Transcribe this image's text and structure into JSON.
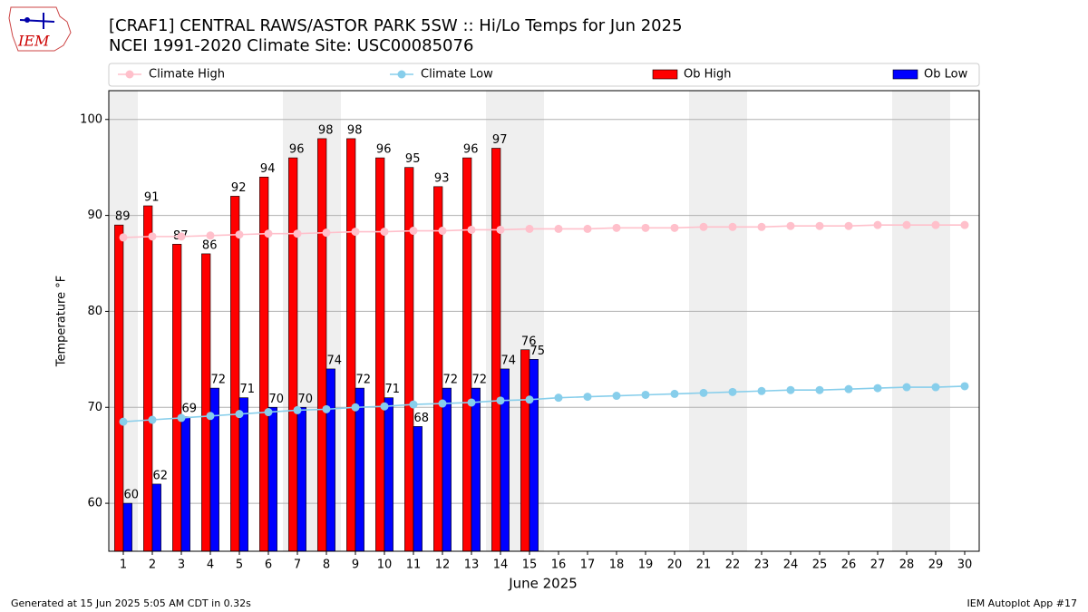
{
  "chart_data": {
    "type": "bar",
    "title": "[CRAF1] CENTRAL RAWS/ASTOR PARK 5SW :: Hi/Lo Temps for Jun 2025",
    "subtitle": "NCEI 1991-2020 Climate Site: USC00085076",
    "logo_text": "IEM",
    "x_label": "June 2025",
    "y_label": "Temperature °F",
    "footer_left": "Generated at 15 Jun 2025 5:05 AM CDT in 0.32s",
    "footer_right": "IEM Autoplot App #17",
    "x": [
      1,
      2,
      3,
      4,
      5,
      6,
      7,
      8,
      9,
      10,
      11,
      12,
      13,
      14,
      15,
      16,
      17,
      18,
      19,
      20,
      21,
      22,
      23,
      24,
      25,
      26,
      27,
      28,
      29,
      30
    ],
    "xlim": [
      0.5,
      30.5
    ],
    "xticks": [
      1,
      2,
      3,
      4,
      5,
      6,
      7,
      8,
      9,
      10,
      11,
      12,
      13,
      14,
      15,
      16,
      17,
      18,
      19,
      20,
      21,
      22,
      23,
      24,
      25,
      26,
      27,
      28,
      29,
      30
    ],
    "ylim": [
      55,
      103
    ],
    "yticks": [
      60,
      70,
      80,
      90,
      100
    ],
    "grid": true,
    "shaded_ranges": [
      [
        0.5,
        1.5
      ],
      [
        6.5,
        8.5
      ],
      [
        13.5,
        15.5
      ],
      [
        20.5,
        22.5
      ],
      [
        27.5,
        29.5
      ]
    ],
    "shade_color": "#efefef",
    "series": [
      {
        "name": "Climate High",
        "type": "line",
        "color": "#ffc0cb",
        "values": [
          87.7,
          87.8,
          87.8,
          87.9,
          88.0,
          88.1,
          88.1,
          88.2,
          88.3,
          88.3,
          88.4,
          88.4,
          88.5,
          88.5,
          88.6,
          88.6,
          88.6,
          88.7,
          88.7,
          88.7,
          88.8,
          88.8,
          88.8,
          88.9,
          88.9,
          88.9,
          89.0,
          89.0,
          89.0,
          89.0
        ]
      },
      {
        "name": "Climate Low",
        "type": "line",
        "color": "#87ceeb",
        "values": [
          68.5,
          68.7,
          68.9,
          69.1,
          69.3,
          69.5,
          69.7,
          69.8,
          70.0,
          70.1,
          70.3,
          70.4,
          70.5,
          70.7,
          70.8,
          71.0,
          71.1,
          71.2,
          71.3,
          71.4,
          71.5,
          71.6,
          71.7,
          71.8,
          71.8,
          71.9,
          72.0,
          72.1,
          72.1,
          72.2
        ]
      },
      {
        "name": "Ob High",
        "type": "bar",
        "color": "#ff0000",
        "values": [
          89,
          91,
          87,
          86,
          92,
          94,
          96,
          98,
          98,
          96,
          95,
          93,
          96,
          97,
          76,
          null,
          null,
          null,
          null,
          null,
          null,
          null,
          null,
          null,
          null,
          null,
          null,
          null,
          null,
          null
        ]
      },
      {
        "name": "Ob Low",
        "type": "bar",
        "color": "#0000ff",
        "values": [
          60,
          62,
          69,
          72,
          71,
          70,
          70,
          74,
          72,
          71,
          68,
          72,
          72,
          74,
          75,
          null,
          null,
          null,
          null,
          null,
          null,
          null,
          null,
          null,
          null,
          null,
          null,
          null,
          null,
          null
        ]
      }
    ]
  }
}
